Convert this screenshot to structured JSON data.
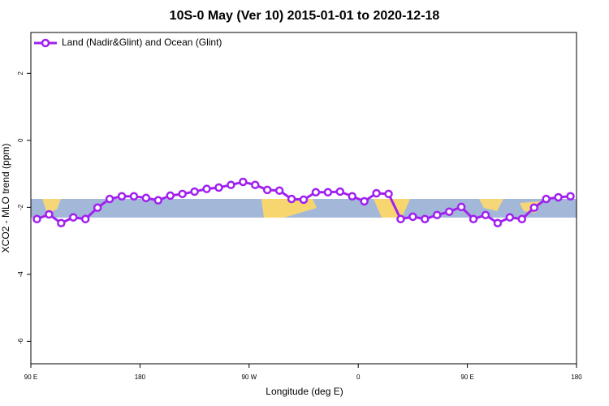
{
  "chart_data": {
    "type": "line",
    "title": "10S-0 May (Ver 10)   2015-01-01 to 2020-12-18",
    "x_label": "Longitude (deg E)",
    "y_label": "XCO2 - MLO trend (ppm)",
    "x": [
      95,
      105,
      115,
      125,
      135,
      145,
      155,
      165,
      175,
      185,
      195,
      205,
      215,
      225,
      235,
      245,
      255,
      265,
      275,
      285,
      295,
      305,
      315,
      325,
      335,
      345,
      355,
      365,
      375,
      385,
      395,
      405,
      415,
      425,
      435,
      445,
      455,
      465,
      475,
      485,
      495,
      505,
      515,
      525,
      535
    ],
    "series": [
      {
        "name": "Land (Nadir&Glint) and Ocean (Glint)",
        "color": "#a020f0",
        "values": [
          -2.35,
          -2.21,
          -2.47,
          -2.3,
          -2.35,
          -2.01,
          -1.75,
          -1.67,
          -1.67,
          -1.72,
          -1.79,
          -1.65,
          -1.6,
          -1.53,
          -1.45,
          -1.41,
          -1.33,
          -1.24,
          -1.33,
          -1.48,
          -1.5,
          -1.75,
          -1.77,
          -1.55,
          -1.55,
          -1.53,
          -1.67,
          -1.82,
          -1.58,
          -1.6,
          -2.35,
          -2.28,
          -2.35,
          -2.23,
          -2.13,
          -1.99,
          -2.35,
          -2.23,
          -2.47,
          -2.3,
          -2.35,
          -2.01,
          -1.75,
          -1.7,
          -1.67
        ]
      }
    ],
    "xlim": [
      90,
      540
    ],
    "xticks": [
      {
        "value": 90,
        "label": "90 E"
      },
      180,
      {
        "value": 270,
        "label": "90 W"
      },
      {
        "value": 360,
        "label": "0"
      },
      {
        "value": 450,
        "label": "90 E"
      },
      {
        "value": 540,
        "label": "180"
      }
    ],
    "ylim": [
      -6.67,
      3.22
    ],
    "yticks": [
      2,
      0,
      -2,
      -4,
      -6
    ],
    "legend": "top-left"
  }
}
